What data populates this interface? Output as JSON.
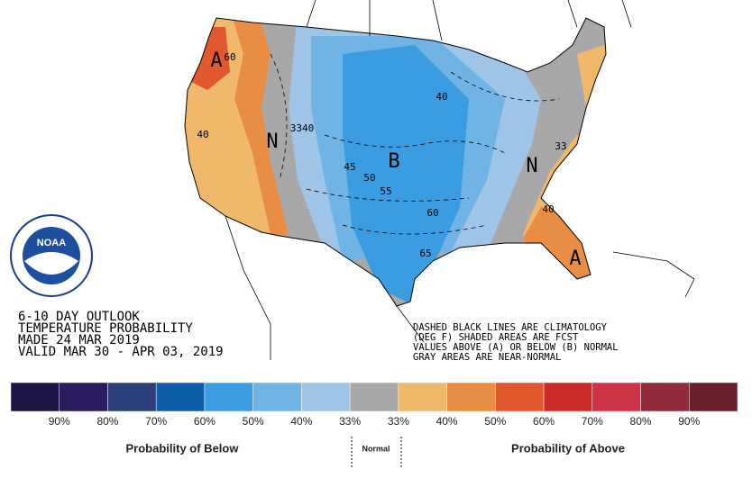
{
  "header": {
    "lines": [
      "6-10 DAY OUTLOOK",
      "TEMPERATURE PROBABILITY",
      "MADE  24 MAR 2019",
      "VALID  MAR 30 - APR 03, 2019"
    ]
  },
  "notes": [
    "DASHED BLACK LINES ARE CLIMATOLOGY",
    "(DEG F) SHADED AREAS ARE FCST",
    "VALUES ABOVE (A) OR BELOW (B) NORMAL",
    "GRAY AREAS ARE NEAR-NORMAL"
  ],
  "logo": {
    "text": "NOAA"
  },
  "map_labels": [
    "A",
    "60",
    "40",
    "N",
    "3340",
    "B",
    "45",
    "50",
    "55",
    "60",
    "65",
    "40",
    "N",
    "33",
    "40",
    "A"
  ],
  "legend": {
    "colors": [
      "#1d1445",
      "#2a1c5f",
      "#2c3f7b",
      "#0c5ea9",
      "#3b9de1",
      "#70b4e6",
      "#9ec4e7",
      "#a8a8a8",
      "#f0b86b",
      "#e98d45",
      "#e1572e",
      "#cb2b2a",
      "#cd3448",
      "#8f2b3b",
      "#6a1f2b"
    ],
    "labels": [
      "90%",
      "80%",
      "70%",
      "60%",
      "50%",
      "40%",
      "33%",
      "33%",
      "40%",
      "50%",
      "60%",
      "70%",
      "80%",
      "90%"
    ],
    "captions": [
      "Probability of Below",
      "Normal",
      "Probability of Above"
    ]
  }
}
